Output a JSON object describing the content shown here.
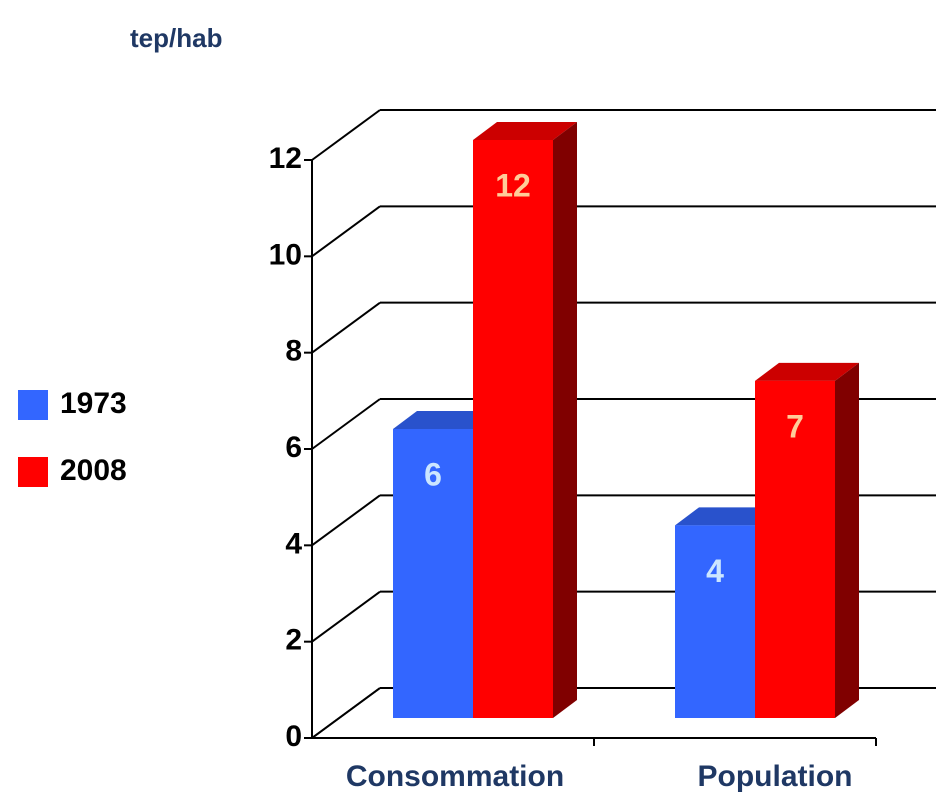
{
  "chart_data": {
    "type": "bar3d",
    "title": "tep/hab",
    "categories": [
      "Consommation",
      "Population"
    ],
    "series": [
      {
        "name": "1973",
        "color": "#3366ff",
        "label_color": "#cce6ff",
        "values": [
          6,
          4
        ]
      },
      {
        "name": "2008",
        "color": "#ff0000",
        "label_color": "#ffcc99",
        "values": [
          12,
          7
        ]
      }
    ],
    "ylim": [
      0,
      12
    ],
    "yticks": [
      0,
      2,
      4,
      6,
      8,
      10,
      12
    ],
    "grid": true,
    "legend": "left"
  }
}
